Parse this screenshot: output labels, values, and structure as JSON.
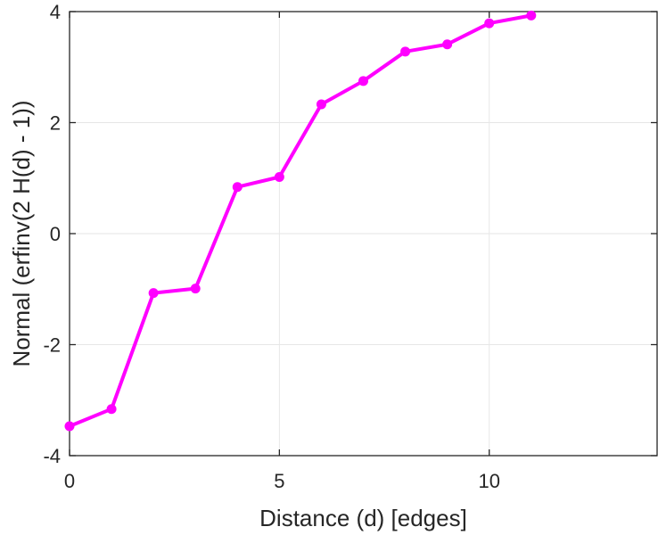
{
  "chart_data": {
    "type": "line",
    "title": "",
    "xlabel": "Distance (d) [edges]",
    "ylabel": "Normal (erfinv(2 H(d) - 1))",
    "xlim": [
      0,
      14
    ],
    "ylim": [
      -4,
      4
    ],
    "xticks": [
      0,
      5,
      10
    ],
    "yticks": [
      -4,
      -2,
      0,
      2,
      4
    ],
    "grid": true,
    "legend": "none",
    "series": [
      {
        "color": "#ff00ff",
        "marker": "circle",
        "x": [
          0,
          1,
          2,
          3,
          4,
          5,
          6,
          7,
          8,
          9,
          10,
          11
        ],
        "y": [
          -3.47,
          -3.16,
          -1.07,
          -0.99,
          0.84,
          1.02,
          2.33,
          2.75,
          3.28,
          3.41,
          3.79,
          3.93
        ]
      }
    ]
  }
}
